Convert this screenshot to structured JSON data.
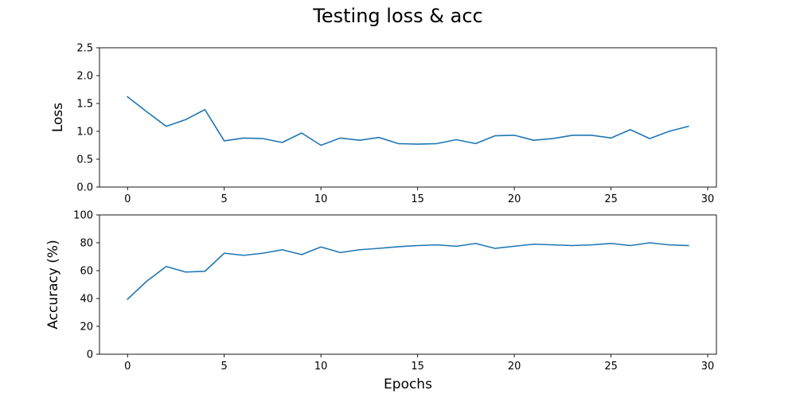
{
  "figure": {
    "title": "Testing loss & acc"
  },
  "chart_data": [
    {
      "type": "line",
      "title": "",
      "xlabel": "",
      "ylabel": "Loss",
      "xlim": [
        -1.45,
        30.45
      ],
      "ylim": [
        0,
        2.5
      ],
      "x_ticks": [
        0,
        5,
        10,
        15,
        20,
        25,
        30
      ],
      "y_ticks": [
        0.0,
        0.5,
        1.0,
        1.5,
        2.0,
        2.5
      ],
      "y_tick_labels": [
        "0.0",
        "0.5",
        "1.0",
        "1.5",
        "2.0",
        "2.5"
      ],
      "grid": false,
      "color": "#1f77b4",
      "series": [
        {
          "x": [
            0,
            1,
            2,
            3,
            4,
            5,
            6,
            7,
            8,
            9,
            10,
            11,
            12,
            13,
            14,
            15,
            16,
            17,
            18,
            19,
            20,
            21,
            22,
            23,
            24,
            25,
            26,
            27,
            28,
            29
          ],
          "values": [
            1.62,
            1.35,
            1.09,
            1.21,
            1.39,
            0.83,
            0.88,
            0.87,
            0.8,
            0.97,
            0.75,
            0.88,
            0.84,
            0.89,
            0.78,
            0.77,
            0.78,
            0.85,
            0.78,
            0.92,
            0.93,
            0.84,
            0.87,
            0.93,
            0.93,
            0.88,
            1.03,
            0.87,
            1.0,
            1.09
          ]
        }
      ]
    },
    {
      "type": "line",
      "title": "",
      "xlabel": "Epochs",
      "ylabel": "Accuracy (%)",
      "xlim": [
        -1.45,
        30.45
      ],
      "ylim": [
        0,
        100
      ],
      "x_ticks": [
        0,
        5,
        10,
        15,
        20,
        25,
        30
      ],
      "y_ticks": [
        0,
        20,
        40,
        60,
        80,
        100
      ],
      "y_tick_labels": [
        "0",
        "20",
        "40",
        "60",
        "80",
        "100"
      ],
      "grid": false,
      "color": "#1f77b4",
      "series": [
        {
          "x": [
            0,
            1,
            2,
            3,
            4,
            5,
            6,
            7,
            8,
            9,
            10,
            11,
            12,
            13,
            14,
            15,
            16,
            17,
            18,
            19,
            20,
            21,
            22,
            23,
            24,
            25,
            26,
            27,
            28,
            29
          ],
          "values": [
            39.5,
            52.5,
            63.0,
            59.0,
            59.5,
            72.5,
            71.0,
            72.5,
            75.0,
            71.5,
            77.0,
            73.0,
            75.0,
            76.0,
            77.2,
            78.0,
            78.5,
            77.5,
            79.5,
            76.0,
            77.5,
            79.0,
            78.5,
            78.0,
            78.5,
            79.5,
            78.0,
            80.0,
            78.5,
            78.0
          ]
        }
      ]
    }
  ]
}
